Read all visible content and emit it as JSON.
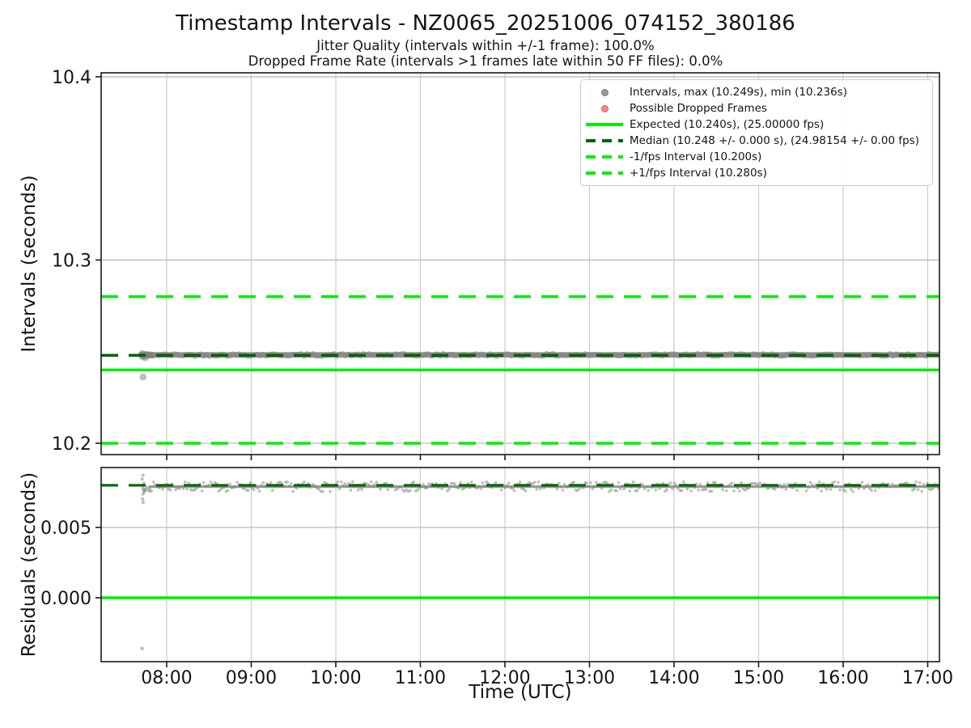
{
  "title": "Timestamp Intervals - NZ0065_20251006_074152_380186",
  "subtitle1": "Jitter Quality (intervals within +/-1 frame): 100.0%",
  "subtitle2": "Dropped Frame Rate (intervals >1 frames late within 50 FF files): 0.0%",
  "colors": {
    "lime": "#00ee00",
    "darkgreen": "#006400",
    "gray_marker": "#9a9a9a",
    "gray_marker_edge": "#7a7a7a",
    "red_marker": "#f28a8a",
    "red_marker_edge": "#e05c5c",
    "band": "#8f8f8f",
    "point": "rgba(128,128,128,0.5)",
    "spine": "#1a1a1a",
    "grid_v": "#cccccc",
    "grid_h": "#b5b5b5",
    "tick_text": "#141414"
  },
  "legend": {
    "items": [
      {
        "marker": "dot",
        "style": "solid",
        "color": "gray_marker",
        "edge": "gray_marker_edge",
        "label": "Intervals, max (10.249s), min (10.236s)"
      },
      {
        "marker": "dot",
        "style": "solid",
        "color": "red_marker",
        "edge": "red_marker_edge",
        "label": "Possible Dropped Frames"
      },
      {
        "marker": "line",
        "style": "solid",
        "color": "lime",
        "label": "Expected (10.240s), (25.00000 fps)"
      },
      {
        "marker": "line",
        "style": "dashed",
        "color": "darkgreen",
        "label": "Median (10.248 +/- 0.000 s), (24.98154 +/- 0.00 fps)"
      },
      {
        "marker": "line",
        "style": "dashed",
        "color": "lime",
        "label": "-1/fps Interval (10.200s)"
      },
      {
        "marker": "line",
        "style": "dashed",
        "color": "lime",
        "label": "+1/fps Interval (10.280s)"
      }
    ]
  },
  "chart_data": {
    "type": "scatter",
    "xlabel": "Time (UTC)",
    "x_axis": {
      "lim_hours": [
        7.2249,
        17.1388
      ],
      "ticks": [
        {
          "hour": 8,
          "label": "08:00"
        },
        {
          "hour": 9,
          "label": "09:00"
        },
        {
          "hour": 10,
          "label": "10:00"
        },
        {
          "hour": 11,
          "label": "11:00"
        },
        {
          "hour": 12,
          "label": "12:00"
        },
        {
          "hour": 13,
          "label": "13:00"
        },
        {
          "hour": 14,
          "label": "14:00"
        },
        {
          "hour": 15,
          "label": "15:00"
        },
        {
          "hour": 16,
          "label": "16:00"
        },
        {
          "hour": 17,
          "label": "17:00"
        }
      ]
    },
    "plots": [
      {
        "name": "intervals",
        "ylabel": "Intervals (seconds)",
        "ylim": [
          10.1938,
          10.4022
        ],
        "yticks": [
          {
            "value": 10.4,
            "label": "10.4"
          },
          {
            "value": 10.3,
            "label": "10.3"
          },
          {
            "value": 10.2,
            "label": "10.2"
          }
        ],
        "show_x_tick_labels": false,
        "stats": {
          "max_s": 10.249,
          "min_s": 10.236,
          "median_s": 10.248,
          "median_err_s": 0.0,
          "expected_s": 10.24,
          "expected_fps": 25.0,
          "median_fps": 24.98154,
          "median_fps_err": 0.0,
          "jitter_quality_pct": 100.0,
          "dropped_frame_rate_pct": 0.0
        },
        "band": {
          "t_start": 7.7,
          "t_end": 17.15,
          "value": 10.2482,
          "jitter": 0.0007,
          "step": 0.035,
          "dot_r": 3.4,
          "core_width": 7,
          "seed": 42
        },
        "cluster_dot_r": 4.4,
        "cluster": [
          [
            7.7,
            10.248
          ],
          [
            7.71,
            10.2488
          ],
          [
            7.718,
            10.2472
          ],
          [
            7.728,
            10.2486
          ],
          [
            7.738,
            10.2478
          ],
          [
            7.748,
            10.2468
          ],
          [
            7.758,
            10.2484
          ],
          [
            7.775,
            10.2479
          ],
          [
            7.8,
            10.2482
          ],
          [
            7.83,
            10.2481
          ]
        ],
        "outlier_dot_r": 4.4,
        "outliers": [
          [
            7.72,
            10.2362
          ]
        ],
        "hlines": [
          {
            "name": "plus_1fps_interval",
            "value": 10.28,
            "color": "lime",
            "dash": true,
            "width": 3.5
          },
          {
            "name": "median",
            "value": 10.248,
            "color": "darkgreen",
            "dash": true,
            "width": 3.5
          },
          {
            "name": "expected",
            "value": 10.24,
            "color": "lime",
            "dash": false,
            "width": 3.5
          },
          {
            "name": "minus_1fps_interval",
            "value": 10.2,
            "color": "lime",
            "dash": true,
            "width": 3.5
          }
        ]
      },
      {
        "name": "residuals",
        "ylabel": "Residuals (seconds)",
        "ylim": [
          -0.00454,
          0.00926
        ],
        "yticks": [
          {
            "value": 0.005,
            "label": "0.005"
          },
          {
            "value": 0.0,
            "label": "0.000"
          }
        ],
        "show_x_tick_labels": true,
        "band": {
          "t_start": 7.8,
          "t_end": 17.15,
          "value": 0.0079,
          "jitter": 0.00035,
          "step": 0.022,
          "dot_r": 1.8,
          "core_width": 3.2,
          "seed": 7
        },
        "cluster_dot_r": 2.1,
        "cluster": [
          [
            7.72,
            0.00872
          ],
          [
            7.71,
            0.00845
          ],
          [
            7.73,
            0.00815
          ],
          [
            7.718,
            0.00782
          ],
          [
            7.726,
            0.00768
          ],
          [
            7.732,
            0.00755
          ],
          [
            7.72,
            0.00738
          ],
          [
            7.714,
            0.00702
          ],
          [
            7.722,
            0.00678
          ],
          [
            7.74,
            0.0076
          ],
          [
            7.752,
            0.00772
          ],
          [
            7.764,
            0.00786
          ],
          [
            7.78,
            0.00765
          ],
          [
            7.8,
            0.00774
          ]
        ],
        "outlier_dot_r": 2.3,
        "outliers": [
          [
            7.71,
            -0.0036
          ]
        ],
        "hlines": [
          {
            "name": "median_residual",
            "value": 0.008,
            "color": "darkgreen",
            "dash": true,
            "width": 3.2
          },
          {
            "name": "zero_residual",
            "value": 0.0,
            "color": "lime",
            "dash": false,
            "width": 3.5
          }
        ]
      }
    ]
  }
}
